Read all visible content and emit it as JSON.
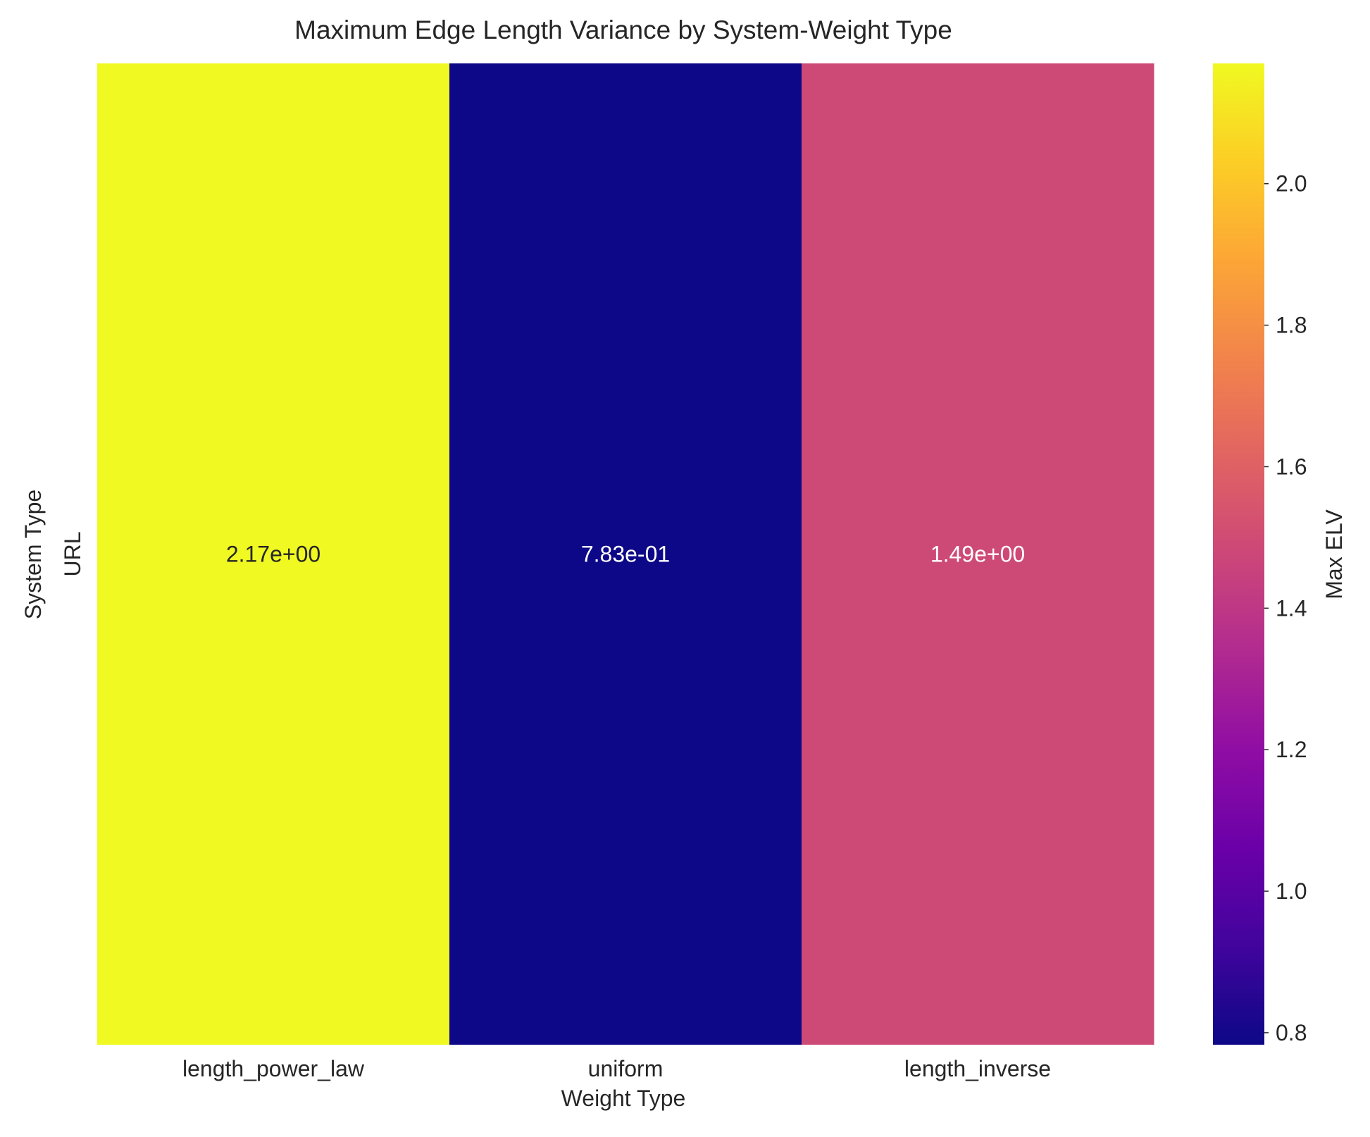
{
  "chart_data": {
    "type": "heatmap",
    "title": "Maximum Edge Length Variance by System-Weight Type",
    "xlabel": "Weight Type",
    "ylabel": "System Type",
    "x_categories": [
      "length_power_law",
      "uniform",
      "length_inverse"
    ],
    "y_categories": [
      "URL"
    ],
    "values": [
      [
        2.17,
        0.783,
        1.49
      ]
    ],
    "cell_labels": [
      [
        "2.17e+00",
        "7.83e-01",
        "1.49e+00"
      ]
    ],
    "colormap": "plasma",
    "colorbar": {
      "label": "Max ELV",
      "range": [
        0.783,
        2.17
      ],
      "ticks": [
        0.8,
        1.0,
        1.2,
        1.4,
        1.6,
        1.8,
        2.0
      ],
      "tick_labels": [
        "0.8",
        "1.0",
        "1.2",
        "1.4",
        "1.6",
        "1.8",
        "2.0"
      ]
    },
    "grid": false
  },
  "colors": {
    "text_dark": "#262626",
    "text_light": "#ffffff",
    "background": "#ffffff"
  }
}
